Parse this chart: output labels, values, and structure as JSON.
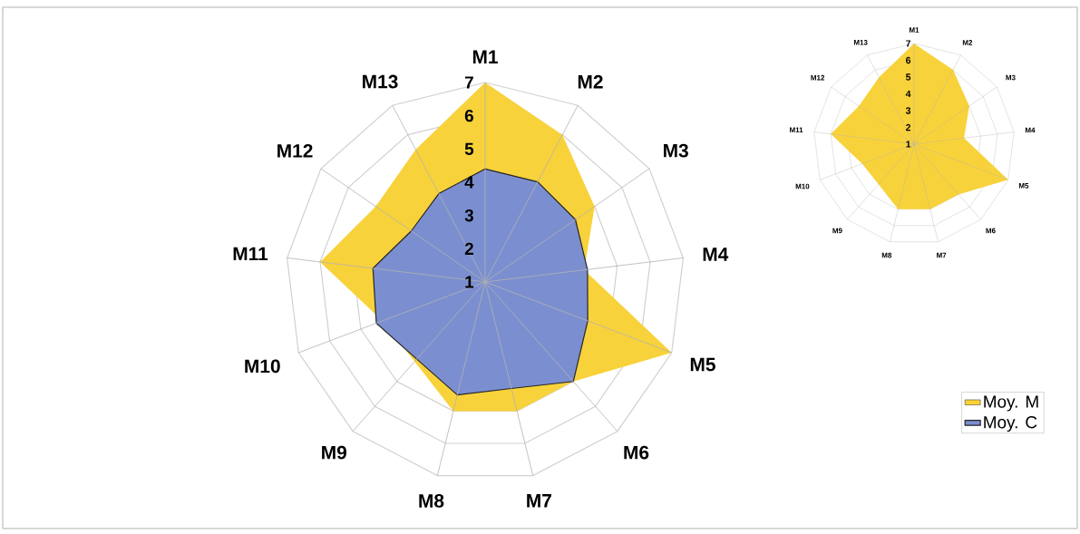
{
  "chart_data": [
    {
      "type": "radar",
      "categories": [
        "M1",
        "M2",
        "M3",
        "M4",
        "M5",
        "M6",
        "M7",
        "M8",
        "M9",
        "M10",
        "M11",
        "M12",
        "M13"
      ],
      "series": [
        {
          "name": "Moy. M",
          "color": "#f8d23a",
          "values": [
            7,
            6,
            5,
            4,
            7,
            5,
            5,
            5,
            4.2,
            4.3,
            6,
            5,
            5.5
          ]
        },
        {
          "name": "Moy. C",
          "color": "#7b8fd0",
          "values": [
            4.4,
            4.4,
            4.3,
            4.1,
            4.3,
            5,
            4.3,
            4.5,
            4.1,
            4.5,
            4.4,
            3.7,
            4
          ]
        }
      ],
      "ylim": [
        1,
        7
      ],
      "yticks": [
        1,
        2,
        3,
        4,
        5,
        6,
        7
      ],
      "grid": true,
      "legend": "bottom right"
    },
    {
      "type": "radar",
      "categories": [
        "M1",
        "M2",
        "M3",
        "M4",
        "M5",
        "M6",
        "M7",
        "M8",
        "M9",
        "M10",
        "M11",
        "M12",
        "M13"
      ],
      "series": [
        {
          "color": "#f8d23a",
          "values": [
            7,
            6,
            5,
            4,
            7,
            5,
            5,
            5,
            4.2,
            4.3,
            6,
            5,
            5.5
          ]
        }
      ],
      "ylim": [
        1,
        7
      ],
      "yticks": [
        1,
        2,
        3,
        4,
        5,
        6,
        7
      ],
      "grid": true
    }
  ]
}
